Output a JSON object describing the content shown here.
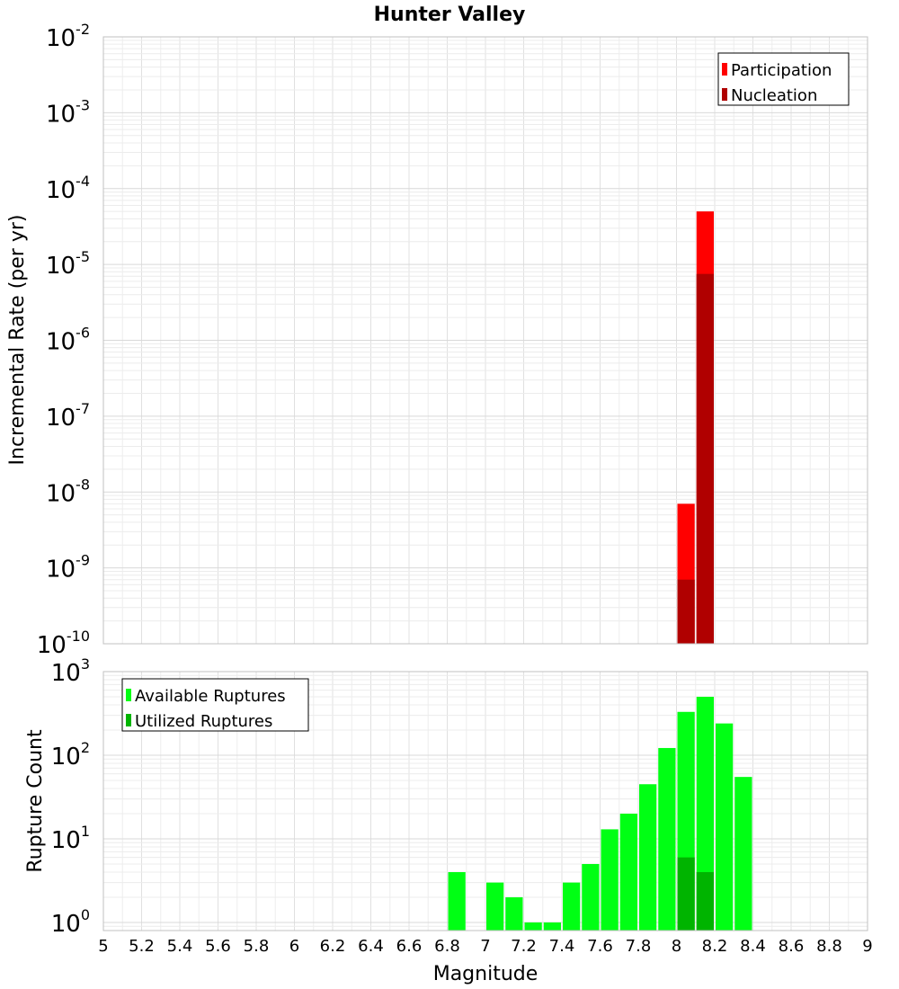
{
  "chart_data": [
    {
      "type": "bar",
      "title": "Hunter Valley",
      "ylabel": "Incremental Rate (per yr)",
      "xlabel": "",
      "yscale": "log",
      "ylim": [
        1e-10,
        0.01
      ],
      "xlim": [
        5,
        9
      ],
      "grid": true,
      "legend_position": "top-right",
      "y_tick_labels": [
        {
          "base": "10",
          "exp": "-10"
        },
        {
          "base": "10",
          "exp": "-9"
        },
        {
          "base": "10",
          "exp": "-8"
        },
        {
          "base": "10",
          "exp": "-7"
        },
        {
          "base": "10",
          "exp": "-6"
        },
        {
          "base": "10",
          "exp": "-5"
        },
        {
          "base": "10",
          "exp": "-4"
        },
        {
          "base": "10",
          "exp": "-3"
        },
        {
          "base": "10",
          "exp": "-2"
        }
      ],
      "series": [
        {
          "name": "Participation",
          "color": "#ff0000",
          "x": [
            8.05,
            8.15
          ],
          "values": [
            7e-09,
            5e-05
          ]
        },
        {
          "name": "Nucleation",
          "color": "#b00000",
          "x": [
            8.05,
            8.15
          ],
          "values": [
            7e-10,
            7.5e-06
          ]
        }
      ]
    },
    {
      "type": "bar",
      "title": "",
      "ylabel": "Rupture Count",
      "xlabel": "Magnitude",
      "yscale": "log",
      "ylim": [
        0.8,
        1000
      ],
      "xlim": [
        5,
        9
      ],
      "grid": true,
      "legend_position": "top-left",
      "x_tick_labels": [
        "5",
        "5.2",
        "5.4",
        "5.6",
        "5.8",
        "6",
        "6.2",
        "6.4",
        "6.6",
        "6.8",
        "7",
        "7.2",
        "7.4",
        "7.6",
        "7.8",
        "8",
        "8.2",
        "8.4",
        "8.6",
        "8.8",
        "9"
      ],
      "y_tick_labels": [
        {
          "base": "10",
          "exp": "0"
        },
        {
          "base": "10",
          "exp": "1"
        },
        {
          "base": "10",
          "exp": "2"
        },
        {
          "base": "10",
          "exp": "3"
        }
      ],
      "series": [
        {
          "name": "Available Ruptures",
          "color": "#00ff14",
          "x": [
            6.85,
            7.05,
            7.15,
            7.25,
            7.35,
            7.45,
            7.55,
            7.65,
            7.75,
            7.85,
            7.95,
            8.05,
            8.15,
            8.25,
            8.35
          ],
          "values": [
            4,
            3,
            2,
            1,
            1,
            3,
            5,
            13,
            20,
            45,
            122,
            330,
            500,
            240,
            55
          ]
        },
        {
          "name": "Utilized Ruptures",
          "color": "#00b400",
          "x": [
            8.05,
            8.15
          ],
          "values": [
            6,
            4
          ]
        }
      ]
    }
  ]
}
